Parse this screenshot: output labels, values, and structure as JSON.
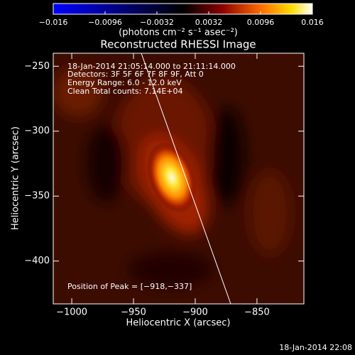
{
  "chart_data": {
    "type": "image",
    "title": "Reconstructed RHESSI Image",
    "colorbar_label": "(photons cm⁻² s⁻¹ asec⁻²)",
    "clim": [
      -0.016,
      0.016
    ],
    "cticks": [
      {
        "value": -0.016,
        "label": "−0.016"
      },
      {
        "value": -0.0096,
        "label": "−0.0096"
      },
      {
        "value": -0.0032,
        "label": "−0.0032"
      },
      0.0032,
      0.0096,
      0.016
    ],
    "x_label": "Heliocentric X (arcsec)",
    "y_label": "Heliocentric Y (arcsec)",
    "xlim": [
      -1015,
      -812
    ],
    "ylim": [
      -433,
      -240
    ],
    "xticks": [
      {
        "value": -1000,
        "label": "−1000"
      },
      {
        "value": -950,
        "label": "−950"
      },
      {
        "value": -900,
        "label": "−900"
      },
      {
        "value": -850,
        "label": "−850"
      }
    ],
    "yticks": [
      {
        "value": -250,
        "label": "−250"
      },
      {
        "value": -300,
        "label": "−300"
      },
      {
        "value": -350,
        "label": "−350"
      },
      {
        "value": -400,
        "label": "−400"
      }
    ],
    "annotations": [
      "18-Jan-2014 21:05:14.000 to 21:11:14.000",
      "Detectors: 3F 5F 6F 7F 8F 9F, Att 0",
      "Energy Range: 6.0 - 12.0 keV",
      "Clean    Total counts: 7.14E+04"
    ],
    "peak_label": "Position of Peak = [−918,−337]",
    "timestamp": "18-Jan-2014 22:08"
  }
}
